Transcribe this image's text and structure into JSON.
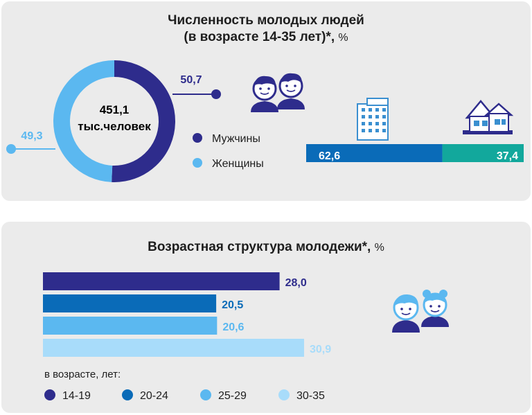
{
  "gender_chart": {
    "title_line1": "Численность молодых людей",
    "title_line2": "(в возрасте 14-35 лет)*,",
    "unit": "%",
    "center_value": "451,1",
    "center_unit": "тыс.человек"
  },
  "housing": {
    "urban_label": "62,6",
    "rural_label": "37,4"
  },
  "age_chart": {
    "title": "Возрастная структура молодежи*,",
    "unit": "%",
    "legend_title": "в возрасте, лет:"
  },
  "chart_data": [
    {
      "type": "pie",
      "title": "Численность молодых людей (в возрасте 14-35 лет)*, %",
      "center_text": "451,1 тыс.человек",
      "categories": [
        "Мужчины",
        "Женщины"
      ],
      "values": [
        50.7,
        49.3
      ],
      "labels": [
        "50,7",
        "49,3"
      ],
      "colors": [
        "#2e2c8c",
        "#5bb8f0"
      ],
      "legend_position": "right"
    },
    {
      "type": "bar",
      "orientation": "horizontal-stacked",
      "categories": [
        "62,6",
        "37,4"
      ],
      "values": [
        62.6,
        37.4
      ],
      "colors": [
        "#0a6bb8",
        "#12a89c"
      ]
    },
    {
      "type": "bar",
      "orientation": "horizontal",
      "title": "Возрастная структура молодежи*, %",
      "legend_title": "в возрасте, лет:",
      "categories": [
        "14-19",
        "20-24",
        "25-29",
        "30-35"
      ],
      "values": [
        28.0,
        20.5,
        20.6,
        30.9
      ],
      "labels": [
        "28,0",
        "20,5",
        "20,6",
        "30,9"
      ],
      "colors": [
        "#2e2c8c",
        "#0a6bb8",
        "#5bb8f0",
        "#a8dcfa"
      ],
      "legend_position": "bottom"
    }
  ]
}
